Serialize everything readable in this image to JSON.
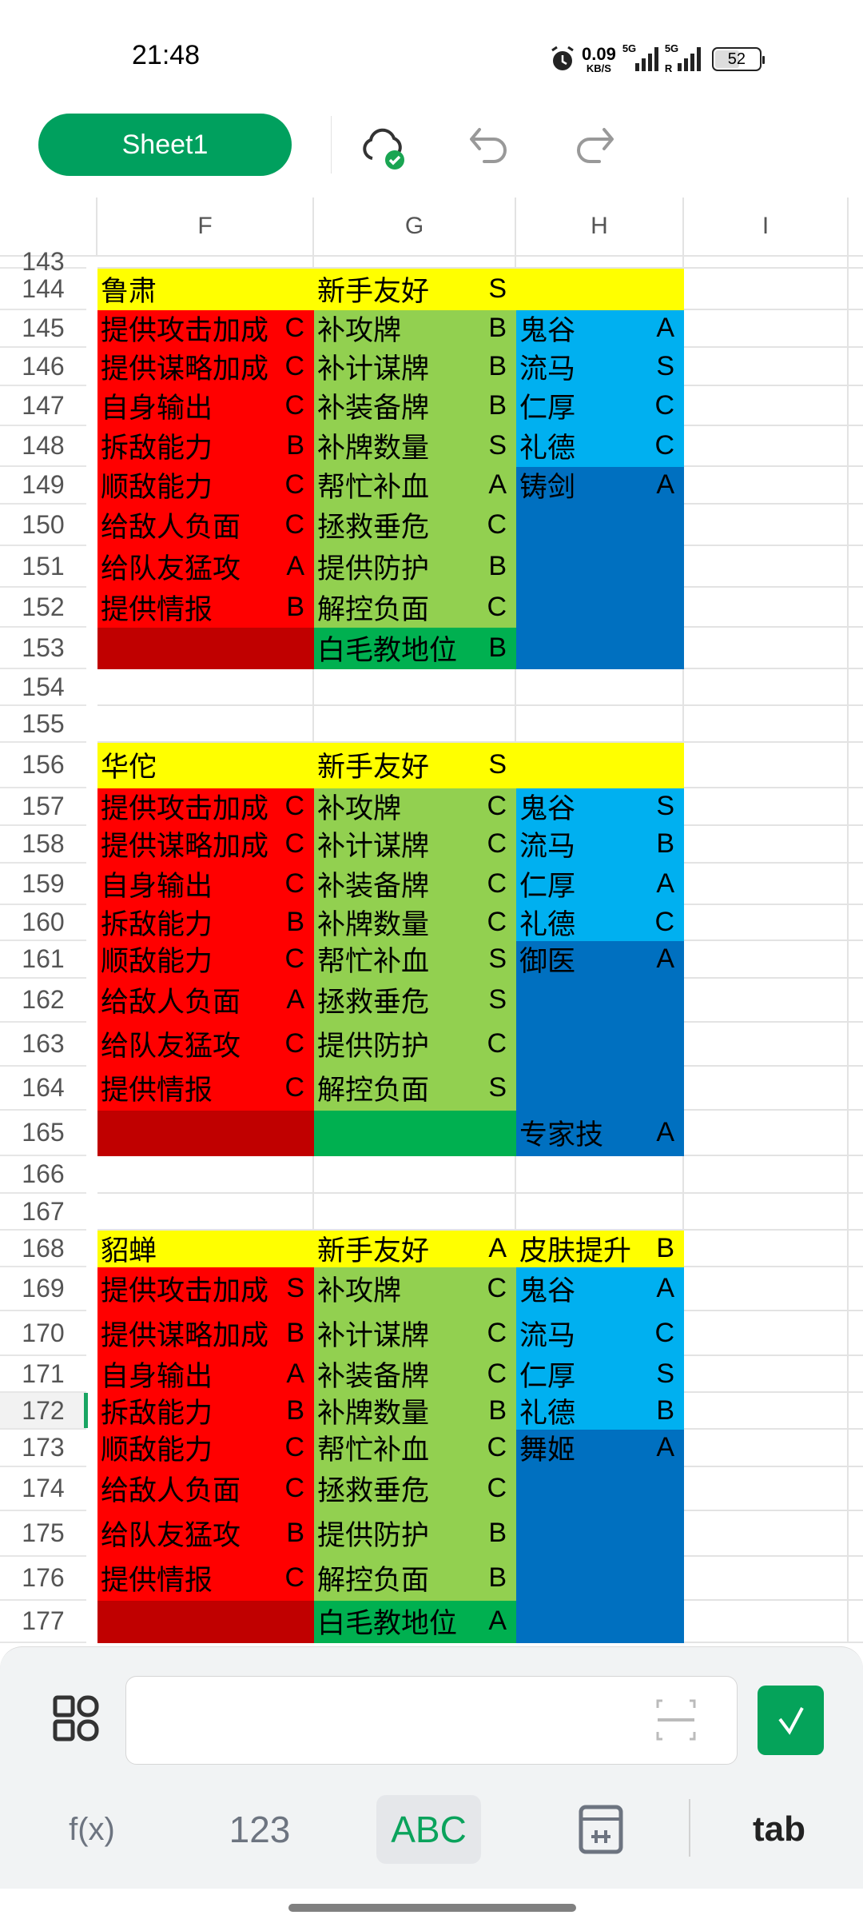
{
  "status_bar": {
    "time": "21:48",
    "net_speed": "0.09",
    "net_unit": "KB/S",
    "sim1": "5G",
    "sim2": "5G",
    "roaming": "R",
    "battery": "52",
    "icons": [
      "alarm-icon",
      "signal-icon",
      "battery-icon"
    ]
  },
  "toolbar": {
    "sheet_name": "Sheet1",
    "icons": [
      "cloud-synced-icon",
      "undo-icon",
      "redo-icon"
    ]
  },
  "columns": [
    "F",
    "G",
    "H",
    "I"
  ],
  "colors": {
    "yellow": "#ffff00",
    "red": "#ff0000",
    "dark_red": "#c00000",
    "light_green": "#92d050",
    "green": "#00b050",
    "light_blue": "#00b0f0",
    "blue": "#0070c0"
  },
  "selected_row": "172",
  "rows": [
    {
      "num": "143"
    },
    {
      "num": "144",
      "F": {
        "t": "鲁肃",
        "c": "yellow"
      },
      "G": {
        "t": "新手友好",
        "g": "S",
        "c": "yellow"
      },
      "H": {
        "c": "yellow"
      }
    },
    {
      "num": "145",
      "F": {
        "t": "提供攻击加成",
        "g": "C",
        "c": "red"
      },
      "G": {
        "t": "补攻牌",
        "g": "B",
        "c": "light_green"
      },
      "H": {
        "t": "鬼谷",
        "g": "A",
        "c": "light_blue"
      }
    },
    {
      "num": "146",
      "F": {
        "t": "提供谋略加成",
        "g": "C",
        "c": "red"
      },
      "G": {
        "t": "补计谋牌",
        "g": "B",
        "c": "light_green"
      },
      "H": {
        "t": "流马",
        "g": "S",
        "c": "light_blue"
      }
    },
    {
      "num": "147",
      "F": {
        "t": "自身输出",
        "g": "C",
        "c": "red"
      },
      "G": {
        "t": "补装备牌",
        "g": "B",
        "c": "light_green"
      },
      "H": {
        "t": "仁厚",
        "g": "C",
        "c": "light_blue"
      }
    },
    {
      "num": "148",
      "F": {
        "t": "拆敌能力",
        "g": "B",
        "c": "red"
      },
      "G": {
        "t": "补牌数量",
        "g": "S",
        "c": "light_green"
      },
      "H": {
        "t": "礼德",
        "g": "C",
        "c": "light_blue"
      }
    },
    {
      "num": "149",
      "F": {
        "t": "顺敌能力",
        "g": "C",
        "c": "red"
      },
      "G": {
        "t": "帮忙补血",
        "g": "A",
        "c": "light_green"
      },
      "H": {
        "t": "铸剑",
        "g": "A",
        "c": "blue"
      }
    },
    {
      "num": "150",
      "F": {
        "t": "给敌人负面",
        "g": "C",
        "c": "red"
      },
      "G": {
        "t": "拯救垂危",
        "g": "C",
        "c": "light_green"
      },
      "H": {
        "c": "blue"
      }
    },
    {
      "num": "151",
      "F": {
        "t": "给队友猛攻",
        "g": "A",
        "c": "red"
      },
      "G": {
        "t": "提供防护",
        "g": "B",
        "c": "light_green"
      },
      "H": {
        "c": "blue"
      }
    },
    {
      "num": "152",
      "F": {
        "t": "提供情报",
        "g": "B",
        "c": "red"
      },
      "G": {
        "t": "解控负面",
        "g": "C",
        "c": "light_green"
      },
      "H": {
        "c": "blue"
      }
    },
    {
      "num": "153",
      "F": {
        "c": "dark_red"
      },
      "G": {
        "t": "白毛教地位",
        "g": "B",
        "c": "green"
      },
      "H": {
        "c": "blue"
      }
    },
    {
      "num": "154"
    },
    {
      "num": "155"
    },
    {
      "num": "156",
      "F": {
        "t": "华佗",
        "c": "yellow"
      },
      "G": {
        "t": "新手友好",
        "g": "S",
        "c": "yellow"
      },
      "H": {
        "c": "yellow"
      }
    },
    {
      "num": "157",
      "F": {
        "t": "提供攻击加成",
        "g": "C",
        "c": "red"
      },
      "G": {
        "t": "补攻牌",
        "g": "C",
        "c": "light_green"
      },
      "H": {
        "t": "鬼谷",
        "g": "S",
        "c": "light_blue"
      }
    },
    {
      "num": "158",
      "F": {
        "t": "提供谋略加成",
        "g": "C",
        "c": "red"
      },
      "G": {
        "t": "补计谋牌",
        "g": "C",
        "c": "light_green"
      },
      "H": {
        "t": "流马",
        "g": "B",
        "c": "light_blue"
      }
    },
    {
      "num": "159",
      "F": {
        "t": "自身输出",
        "g": "C",
        "c": "red"
      },
      "G": {
        "t": "补装备牌",
        "g": "C",
        "c": "light_green"
      },
      "H": {
        "t": "仁厚",
        "g": "A",
        "c": "light_blue"
      }
    },
    {
      "num": "160",
      "F": {
        "t": "拆敌能力",
        "g": "B",
        "c": "red"
      },
      "G": {
        "t": "补牌数量",
        "g": "C",
        "c": "light_green"
      },
      "H": {
        "t": "礼德",
        "g": "C",
        "c": "light_blue"
      }
    },
    {
      "num": "161",
      "F": {
        "t": "顺敌能力",
        "g": "C",
        "c": "red"
      },
      "G": {
        "t": "帮忙补血",
        "g": "S",
        "c": "light_green"
      },
      "H": {
        "t": "御医",
        "g": "A",
        "c": "blue"
      }
    },
    {
      "num": "162",
      "F": {
        "t": "给敌人负面",
        "g": "A",
        "c": "red"
      },
      "G": {
        "t": "拯救垂危",
        "g": "S",
        "c": "light_green"
      },
      "H": {
        "c": "blue"
      }
    },
    {
      "num": "163",
      "F": {
        "t": "给队友猛攻",
        "g": "C",
        "c": "red"
      },
      "G": {
        "t": "提供防护",
        "g": "C",
        "c": "light_green"
      },
      "H": {
        "c": "blue"
      }
    },
    {
      "num": "164",
      "F": {
        "t": "提供情报",
        "g": "C",
        "c": "red"
      },
      "G": {
        "t": "解控负面",
        "g": "S",
        "c": "light_green"
      },
      "H": {
        "c": "blue"
      }
    },
    {
      "num": "165",
      "F": {
        "c": "dark_red"
      },
      "G": {
        "c": "green"
      },
      "H": {
        "t": "专家技",
        "g": "A",
        "c": "blue"
      }
    },
    {
      "num": "166"
    },
    {
      "num": "167"
    },
    {
      "num": "168",
      "F": {
        "t": "貂蝉",
        "c": "yellow"
      },
      "G": {
        "t": "新手友好",
        "g": "A",
        "c": "yellow"
      },
      "H": {
        "t": "皮肤提升",
        "g": "B",
        "c": "yellow"
      }
    },
    {
      "num": "169",
      "F": {
        "t": "提供攻击加成",
        "g": "S",
        "c": "red"
      },
      "G": {
        "t": "补攻牌",
        "g": "C",
        "c": "light_green"
      },
      "H": {
        "t": "鬼谷",
        "g": "A",
        "c": "light_blue"
      }
    },
    {
      "num": "170",
      "F": {
        "t": "提供谋略加成",
        "g": "B",
        "c": "red"
      },
      "G": {
        "t": "补计谋牌",
        "g": "C",
        "c": "light_green"
      },
      "H": {
        "t": "流马",
        "g": "C",
        "c": "light_blue"
      }
    },
    {
      "num": "171",
      "F": {
        "t": "自身输出",
        "g": "A",
        "c": "red"
      },
      "G": {
        "t": "补装备牌",
        "g": "C",
        "c": "light_green"
      },
      "H": {
        "t": "仁厚",
        "g": "S",
        "c": "light_blue"
      }
    },
    {
      "num": "172",
      "F": {
        "t": "拆敌能力",
        "g": "B",
        "c": "red"
      },
      "G": {
        "t": "补牌数量",
        "g": "B",
        "c": "light_green"
      },
      "H": {
        "t": "礼德",
        "g": "B",
        "c": "light_blue"
      }
    },
    {
      "num": "173",
      "F": {
        "t": "顺敌能力",
        "g": "C",
        "c": "red"
      },
      "G": {
        "t": "帮忙补血",
        "g": "C",
        "c": "light_green"
      },
      "H": {
        "t": "舞姬",
        "g": "A",
        "c": "blue"
      }
    },
    {
      "num": "174",
      "F": {
        "t": "给敌人负面",
        "g": "C",
        "c": "red"
      },
      "G": {
        "t": "拯救垂危",
        "g": "C",
        "c": "light_green"
      },
      "H": {
        "c": "blue"
      }
    },
    {
      "num": "175",
      "F": {
        "t": "给队友猛攻",
        "g": "B",
        "c": "red"
      },
      "G": {
        "t": "提供防护",
        "g": "B",
        "c": "light_green"
      },
      "H": {
        "c": "blue"
      }
    },
    {
      "num": "176",
      "F": {
        "t": "提供情报",
        "g": "C",
        "c": "red"
      },
      "G": {
        "t": "解控负面",
        "g": "B",
        "c": "light_green"
      },
      "H": {
        "c": "blue"
      }
    },
    {
      "num": "177",
      "F": {
        "c": "dark_red"
      },
      "G": {
        "t": "白毛教地位",
        "g": "A",
        "c": "green"
      },
      "H": {
        "c": "blue"
      }
    }
  ],
  "input_panel": {
    "cell_value": "",
    "keyboard_tabs": [
      "f(x)",
      "123",
      "ABC",
      "tab"
    ],
    "active_tab": "ABC"
  }
}
